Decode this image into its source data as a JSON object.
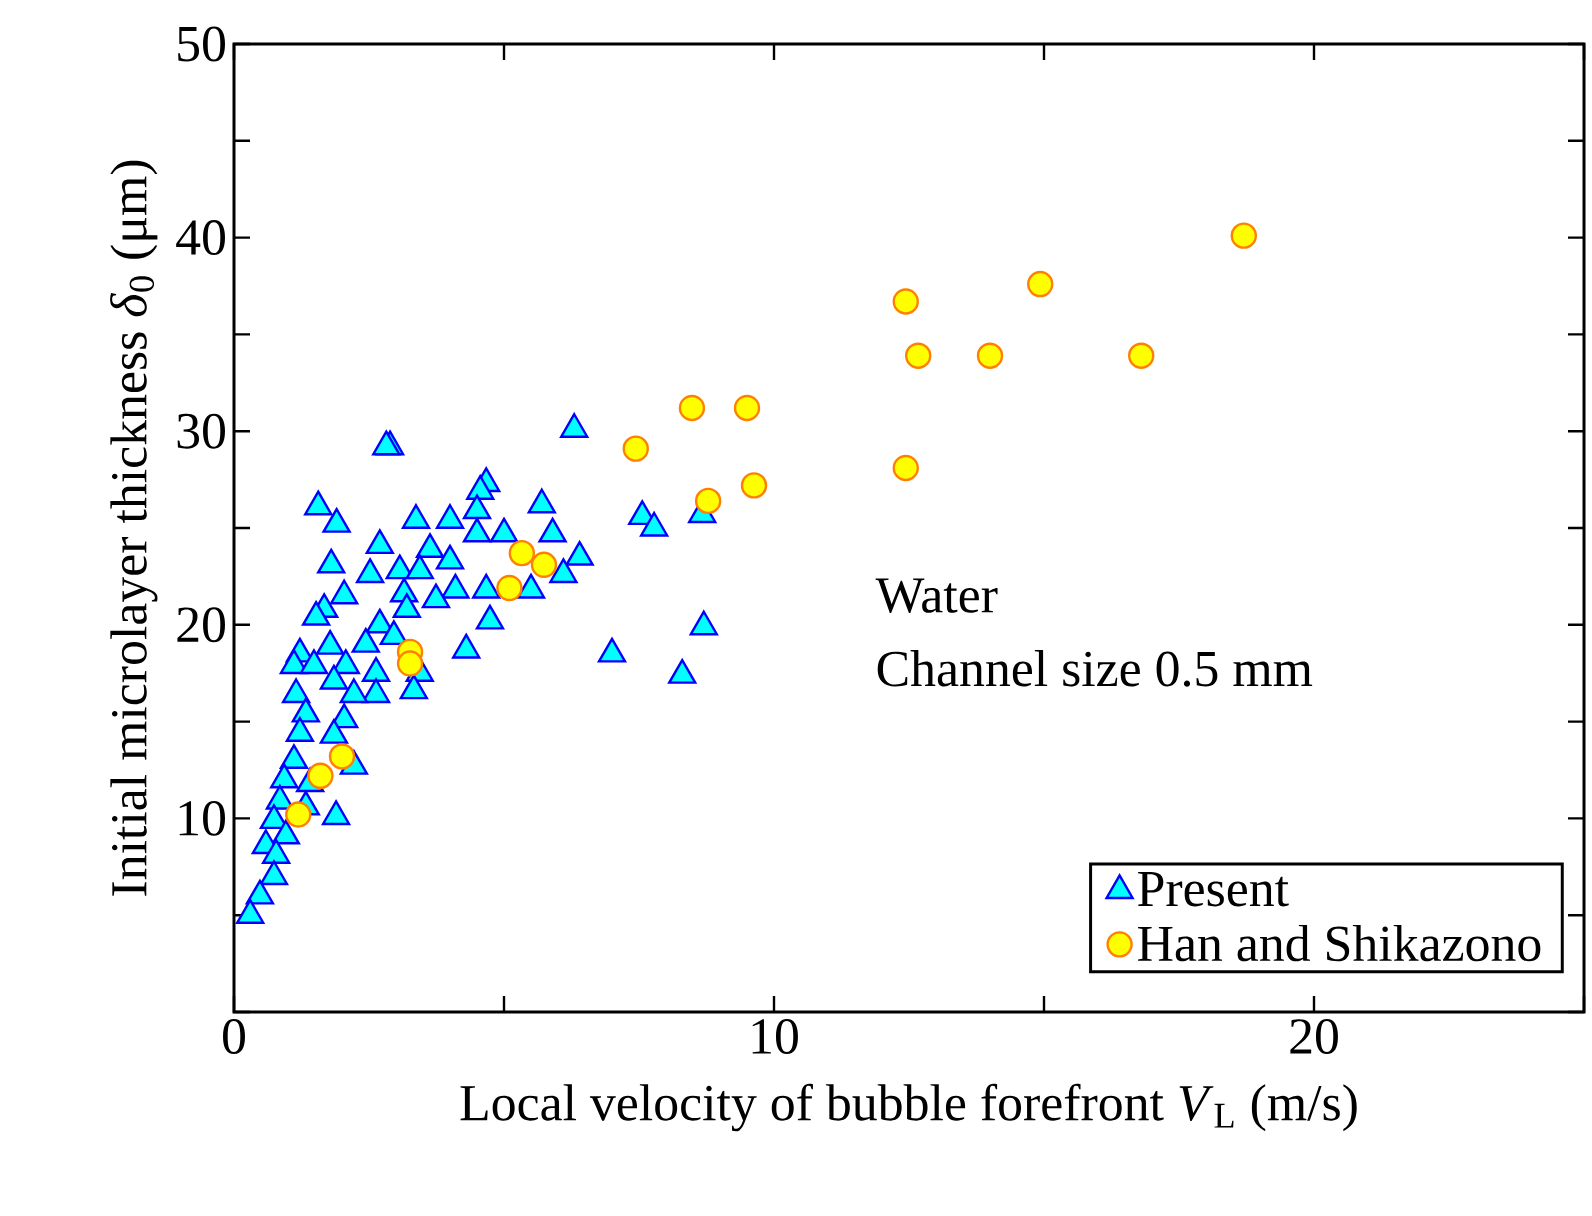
{
  "chart_data": {
    "type": "scatter",
    "xlabel": "Local velocity of bubble forefront *V*$_{L}$ (m/s)",
    "ylabel": "Initial microlayer thickness *δ*$_{0}$ (μm)",
    "annotations": [
      "Water",
      "Channel size 0.5 mm"
    ],
    "xlim": [
      0,
      25
    ],
    "ylim": [
      0,
      50
    ],
    "xticks": [
      0,
      {
        "value": 5,
        "label": null
      },
      10,
      {
        "value": 15,
        "label": null
      },
      20,
      {
        "value": 25,
        "label": null
      }
    ],
    "yticks": [
      {
        "value": 0,
        "label": null
      },
      {
        "value": 5,
        "label": null
      },
      10,
      {
        "value": 15,
        "label": null
      },
      20,
      {
        "value": 25,
        "label": null
      },
      30,
      {
        "value": 35,
        "label": null
      },
      40,
      {
        "value": 45,
        "label": null
      },
      50
    ],
    "legend": "bottom right",
    "grid": false,
    "series": [
      {
        "name": "Present",
        "color": "#00ffff",
        "marker": "triangle",
        "x": [
          2.89,
          2.82,
          6.3,
          1.56,
          1.9,
          1.8,
          4.67,
          4.56,
          5.7,
          5.9,
          6.4,
          6.1,
          5.5,
          5.0,
          4.5,
          4.5,
          4.0,
          3.37,
          3.63,
          4.0,
          4.1,
          3.74,
          4.67,
          4.74,
          4.3,
          2.7,
          2.52,
          3.07,
          3.44,
          3.15,
          3.2,
          2.7,
          2.44,
          2.96,
          2.04,
          1.67,
          1.52,
          1.78,
          1.22,
          1.11,
          1.48,
          2.07,
          2.63,
          3.44,
          3.33,
          2.63,
          2.22,
          1.85,
          1.15,
          1.33,
          2.04,
          1.22,
          1.85,
          2.22,
          1.11,
          0.93,
          1.41,
          0.85,
          1.33,
          1.89,
          0.74,
          0.96,
          0.59,
          0.78,
          0.74,
          0.48,
          0.3,
          7.56,
          7.78,
          8.67,
          8.7,
          7.0,
          8.3
        ],
        "values": [
          29.2,
          29.2,
          30.1,
          26.1,
          25.2,
          23.1,
          27.3,
          26.9,
          26.2,
          24.7,
          23.5,
          22.6,
          21.8,
          24.7,
          25.9,
          24.7,
          25.4,
          25.4,
          23.9,
          23.3,
          21.8,
          21.3,
          21.8,
          20.2,
          18.7,
          24.1,
          22.6,
          22.8,
          22.8,
          21.6,
          20.8,
          20.0,
          19.0,
          19.4,
          21.5,
          20.8,
          20.4,
          18.9,
          18.5,
          17.9,
          17.9,
          17.9,
          17.5,
          17.5,
          16.6,
          16.4,
          16.4,
          17.1,
          16.4,
          15.4,
          15.1,
          14.4,
          14.3,
          12.7,
          13.0,
          12.0,
          11.8,
          10.9,
          10.6,
          10.1,
          9.9,
          9.1,
          8.6,
          8.1,
          7.0,
          6.0,
          5.0,
          25.6,
          25.0,
          25.7,
          19.9,
          18.5,
          17.4
        ]
      },
      {
        "name": "Han and Shikazono",
        "color": "#ffff00",
        "marker": "circle",
        "x": [
          1.19,
          1.6,
          2.0,
          3.26,
          3.26,
          5.1,
          5.33,
          5.74,
          7.44,
          8.48,
          8.78,
          9.5,
          9.63,
          12.44,
          12.67,
          12.44,
          14.0,
          14.93,
          16.8,
          18.7
        ],
        "values": [
          10.2,
          12.2,
          13.2,
          18.6,
          18.0,
          21.9,
          23.7,
          23.1,
          29.1,
          31.2,
          26.4,
          31.2,
          27.2,
          36.7,
          33.9,
          28.1,
          33.9,
          37.6,
          33.9,
          40.1
        ]
      }
    ]
  }
}
